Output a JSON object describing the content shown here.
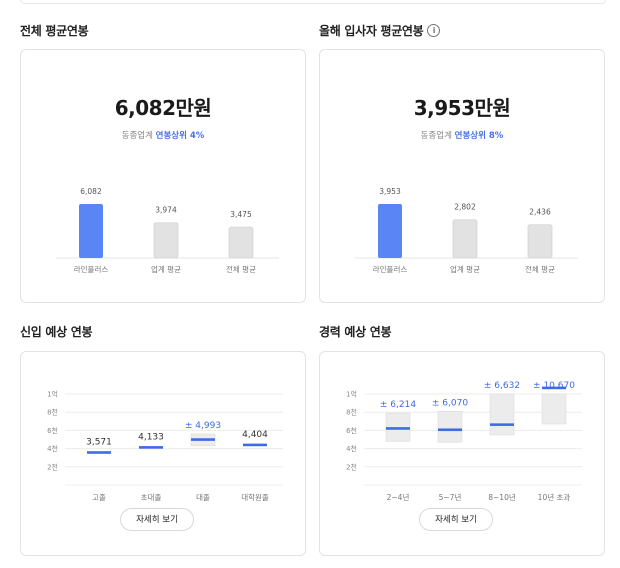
{
  "sections": {
    "overall_title": "전체 평균연봉",
    "newhire_title": "올해 입사자 평균연봉",
    "junior_title": "신입 예상 연봉",
    "career_title": "경력 예상 연봉"
  },
  "overall": {
    "value": "6,082만원",
    "rank_prefix": "동종업계",
    "rank_highlight": "연봉상위 4%"
  },
  "newhire": {
    "value": "3,953만원",
    "rank_prefix": "동종업계",
    "rank_highlight": "연봉상위 8%"
  },
  "buttons": {
    "junior_detail": "자세히 보기",
    "career_detail": "자세히 보기"
  },
  "icons": {
    "info": "info-circle-icon"
  },
  "colors": {
    "accent": "#4a73e8",
    "bar_accent": "#5a86f5",
    "bar_gray": "#e2e2e2"
  },
  "chart_data": [
    {
      "type": "bar",
      "categories": [
        "라인플러스",
        "업계 평균",
        "전체 평균"
      ],
      "values": [
        6082,
        3974,
        3475
      ],
      "labels": [
        "6,082",
        "3,974",
        "3,475"
      ],
      "highlight_index": 0,
      "ylim": [
        0,
        6082
      ]
    },
    {
      "type": "bar",
      "categories": [
        "라인플러스",
        "업계 평균",
        "전체 평균"
      ],
      "values": [
        3953,
        2802,
        2436
      ],
      "labels": [
        "3,953",
        "2,802",
        "2,436"
      ],
      "highlight_index": 0,
      "ylim": [
        0,
        3953
      ]
    },
    {
      "type": "range",
      "y_ticks": [
        "1억",
        "8천",
        "6천",
        "4천",
        "2천"
      ],
      "y_tick_values": [
        10000,
        8000,
        6000,
        4000,
        2000
      ],
      "ylim": [
        0,
        10000
      ],
      "categories": [
        "고졸",
        "초대졸",
        "대졸",
        "대학원졸"
      ],
      "values": [
        3571,
        4133,
        4993,
        4404
      ],
      "labels": [
        "3,571",
        "4,133",
        "± 4,993",
        "4,404"
      ],
      "ranges": [
        null,
        null,
        [
          4300,
          5600
        ],
        null
      ],
      "highlight_index": 2
    },
    {
      "type": "range",
      "y_ticks": [
        "1억",
        "8천",
        "6천",
        "4천",
        "2천"
      ],
      "y_tick_values": [
        10000,
        8000,
        6000,
        4000,
        2000
      ],
      "ylim": [
        0,
        10000
      ],
      "categories": [
        "2~4년",
        "5~7년",
        "8~10년",
        "10년 초과"
      ],
      "values": [
        6214,
        6070,
        6632,
        10670
      ],
      "labels": [
        "± 6,214",
        "± 6,070",
        "± 6,632",
        "± 10,670"
      ],
      "ranges": [
        [
          4800,
          7900
        ],
        [
          4700,
          8100
        ],
        [
          5500,
          10000
        ],
        [
          6700,
          10000
        ]
      ],
      "highlight_index": -1
    }
  ]
}
